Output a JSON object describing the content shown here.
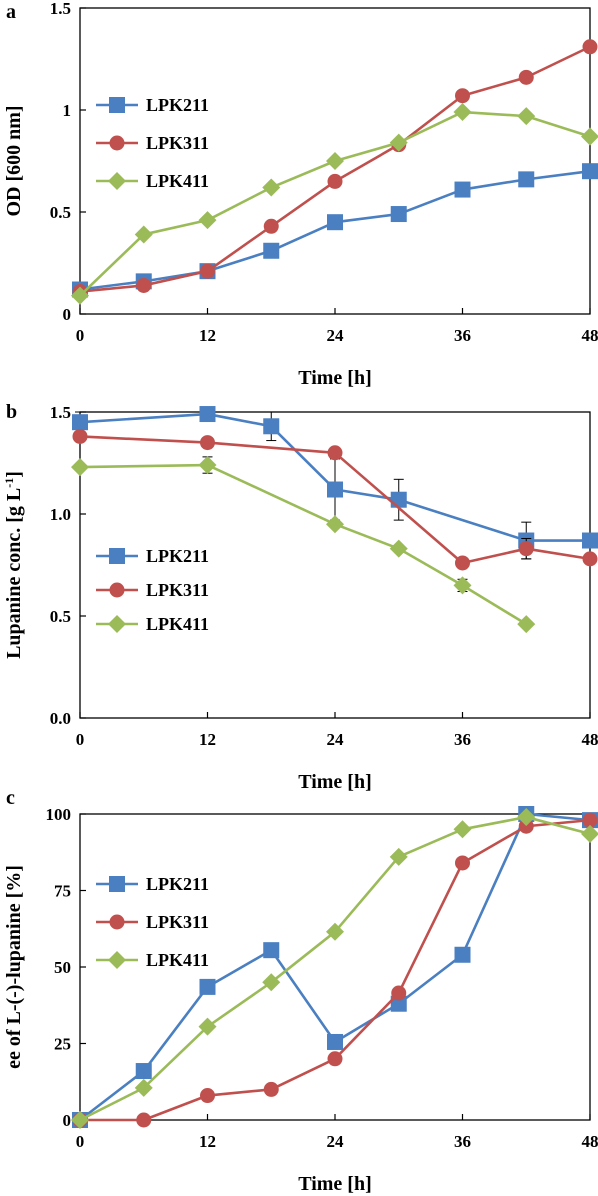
{
  "chart_data": [
    {
      "panel": "a",
      "type": "line",
      "xlabel": "Time [h]",
      "ylabel": "OD [600 nm]",
      "xlim": [
        0,
        48
      ],
      "ylim": [
        0,
        1.5
      ],
      "xticks": [
        "0",
        "12",
        "24",
        "36",
        "48"
      ],
      "yticks": [
        "0",
        "0.5",
        "1",
        "1.5"
      ],
      "legend": "left",
      "grid": false,
      "series": [
        {
          "name": "LPK211",
          "color": "#4a7fc1",
          "marker": "square",
          "x": [
            0,
            6,
            12,
            18,
            24,
            30,
            36,
            42,
            48
          ],
          "y": [
            0.12,
            0.16,
            0.21,
            0.31,
            0.45,
            0.49,
            0.61,
            0.66,
            0.7
          ]
        },
        {
          "name": "LPK311",
          "color": "#c0504d",
          "marker": "circle",
          "x": [
            0,
            6,
            12,
            18,
            24,
            30,
            36,
            42,
            48
          ],
          "y": [
            0.11,
            0.14,
            0.21,
            0.43,
            0.65,
            0.83,
            1.07,
            1.16,
            1.31
          ]
        },
        {
          "name": "LPK411",
          "color": "#9bbb59",
          "marker": "diamond",
          "x": [
            0,
            6,
            12,
            18,
            24,
            30,
            36,
            42,
            48
          ],
          "y": [
            0.09,
            0.39,
            0.46,
            0.62,
            0.75,
            0.84,
            0.99,
            0.97,
            0.87
          ]
        }
      ]
    },
    {
      "panel": "b",
      "type": "line",
      "xlabel": "Time [h]",
      "ylabel": "Lupanine conc. [g L",
      "ylabel_sup": "-1",
      "ylabel_end": "]",
      "xlim": [
        0,
        48
      ],
      "ylim": [
        0,
        1.5
      ],
      "xticks": [
        "0",
        "12",
        "24",
        "36",
        "48"
      ],
      "yticks": [
        "0.0",
        "0.5",
        "1.0",
        "1.5"
      ],
      "legend": "left",
      "grid": false,
      "series": [
        {
          "name": "LPK211",
          "color": "#4a7fc1",
          "marker": "square",
          "x": [
            0,
            12,
            18,
            24,
            30,
            42,
            48
          ],
          "y": [
            1.45,
            1.49,
            1.43,
            1.12,
            1.07,
            0.87,
            0.87
          ],
          "err": [
            0.05,
            0.03,
            0.07,
            0.15,
            0.1,
            0.09,
            0
          ]
        },
        {
          "name": "LPK311",
          "color": "#c0504d",
          "marker": "circle",
          "x": [
            0,
            12,
            24,
            36,
            42,
            48
          ],
          "y": [
            1.38,
            1.35,
            1.3,
            0.76,
            0.83,
            0.78
          ],
          "err": [
            0,
            0,
            0,
            0,
            0.05,
            0
          ]
        },
        {
          "name": "LPK411",
          "color": "#9bbb59",
          "marker": "diamond",
          "x": [
            0,
            12,
            24,
            30,
            36,
            42
          ],
          "y": [
            1.23,
            1.24,
            0.95,
            0.83,
            0.65,
            0.46
          ],
          "err": [
            0,
            0.04,
            0,
            0,
            0.03,
            0
          ]
        }
      ]
    },
    {
      "panel": "c",
      "type": "line",
      "xlabel": "Time [h]",
      "ylabel": "ee of L-(-)-lupanine [%]",
      "xlim": [
        0,
        48
      ],
      "ylim": [
        0,
        100
      ],
      "xticks": [
        "0",
        "12",
        "24",
        "36",
        "48"
      ],
      "yticks": [
        "0",
        "25",
        "50",
        "75",
        "100"
      ],
      "legend": "left",
      "grid": false,
      "series": [
        {
          "name": "LPK211",
          "color": "#4a7fc1",
          "marker": "square",
          "x": [
            0,
            6,
            12,
            18,
            24,
            30,
            36,
            42,
            48
          ],
          "y": [
            0,
            16,
            43.5,
            55.5,
            25.5,
            38,
            54,
            100,
            98
          ]
        },
        {
          "name": "LPK311",
          "color": "#c0504d",
          "marker": "circle",
          "x": [
            0,
            6,
            12,
            18,
            24,
            30,
            36,
            42,
            48
          ],
          "y": [
            0,
            0,
            8,
            10,
            20,
            41.5,
            84,
            96,
            98
          ]
        },
        {
          "name": "LPK411",
          "color": "#9bbb59",
          "marker": "diamond",
          "x": [
            0,
            6,
            12,
            18,
            24,
            30,
            36,
            42,
            48
          ],
          "y": [
            0,
            10.5,
            30.5,
            45,
            61.5,
            86,
            95,
            99,
            93.5
          ]
        }
      ]
    }
  ]
}
